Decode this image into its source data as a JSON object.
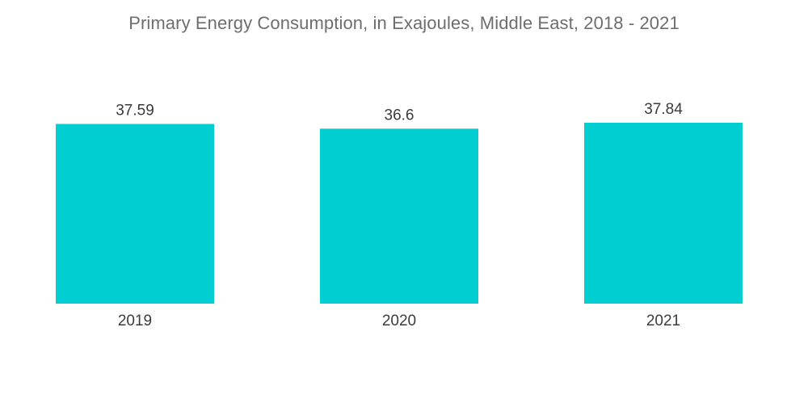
{
  "chart_data": {
    "type": "bar",
    "title": "Primary Energy Consumption, in Exajoules, Middle East, 2018 - 2021",
    "categories": [
      "2019",
      "2020",
      "2021"
    ],
    "values": [
      37.59,
      36.6,
      37.84
    ],
    "value_labels": [
      "37.59",
      "36.6",
      "37.84"
    ],
    "xlabel": "",
    "ylabel": "",
    "ylim": [
      0,
      37.84
    ],
    "grid": false,
    "bar_color": "#00CED1"
  }
}
